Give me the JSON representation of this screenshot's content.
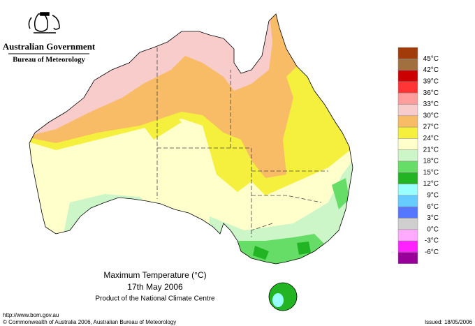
{
  "header": {
    "government": "Australian Government",
    "agency": "Bureau of Meteorology"
  },
  "map": {
    "title": "Maximum Temperature (°C)",
    "date": "17th May 2006",
    "product": "Product of the National Climate Centre"
  },
  "legend": {
    "labels": [
      "45°C",
      "42°C",
      "39°C",
      "36°C",
      "33°C",
      "30°C",
      "27°C",
      "24°C",
      "21°C",
      "18°C",
      "15°C",
      "12°C",
      "9°C",
      "6°C",
      "3°C",
      "0°C",
      "-3°C",
      "-6°C"
    ],
    "colors": [
      "#a13c0a",
      "#a0703e",
      "#cc0000",
      "#ff3535",
      "#ff9c9c",
      "#f9cccc",
      "#f8bb66",
      "#f5ef3d",
      "#ffffcc",
      "#ccf5c8",
      "#66dd66",
      "#22b422",
      "#99ffff",
      "#66ccff",
      "#5577ff",
      "#cfcfcf",
      "#ffaaff",
      "#ff22ff",
      "#990099"
    ]
  },
  "footer": {
    "url": "http://www.bom.gov.au",
    "copyright": "© Commonwealth of Australia 2006, Australian Bureau of Meteorology",
    "issued": "Issued: 18/05/2006"
  }
}
